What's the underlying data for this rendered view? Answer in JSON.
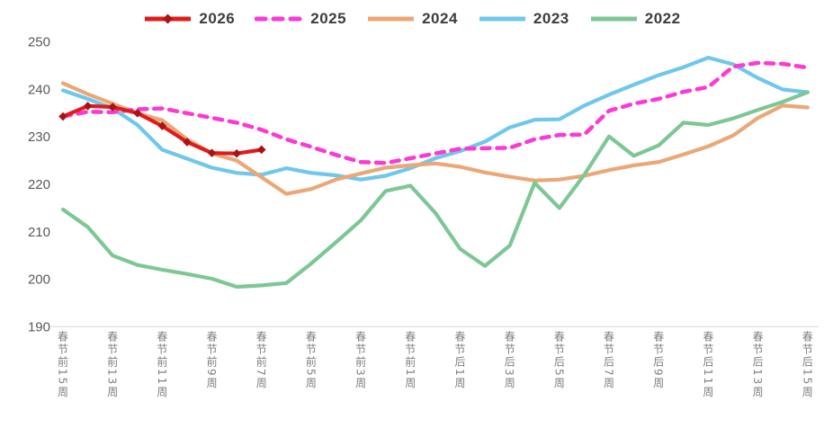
{
  "chart_data": {
    "type": "line",
    "title": "",
    "x_axis": {
      "visible_labels": [
        "春节前15周",
        "春节前13周",
        "春节前11周",
        "春节前9周",
        "春节前7周",
        "春节前5周",
        "春节前3周",
        "春节前1周",
        "春节后1周",
        "春节后3周",
        "春节后5周",
        "春节后7周",
        "春节后9周",
        "春节后11周",
        "春节后13周",
        "春节后15周"
      ],
      "label_every_n_points": 2,
      "total_points": 31
    },
    "y_axis": {
      "min": 190,
      "max": 250,
      "step": 10,
      "tick_labels": [
        "250",
        "240",
        "230",
        "220",
        "210",
        "200",
        "190"
      ]
    },
    "grid": "off",
    "legend_position": "top",
    "axis_line_color": "#d9d9d9",
    "y_label_color": "#595959",
    "x_label_color": "#7f7f7f",
    "legend_text_color": "#3d3d3d",
    "series": [
      {
        "name": "2026",
        "color": "#e11b1b",
        "marker": "diamond",
        "marker_color": "#a81414",
        "line_style": "solid",
        "values": [
          234.3,
          236.5,
          236.3,
          235.0,
          232.3,
          228.9,
          226.6,
          226.5,
          227.3
        ]
      },
      {
        "name": "2025",
        "color": "#fc39d3",
        "marker": "none",
        "line_style": "dashed",
        "values": [
          234.3,
          235.3,
          235.2,
          235.8,
          236.0,
          235.0,
          234.0,
          233.0,
          231.5,
          229.5,
          227.9,
          226.2,
          224.7,
          224.5,
          225.5,
          226.5,
          227.5,
          227.6,
          227.7,
          229.5,
          230.4,
          230.5,
          235.5,
          237.0,
          238.0,
          239.5,
          240.5,
          244.8,
          245.6,
          245.4,
          244.6
        ]
      },
      {
        "name": "2024",
        "color": "#eba776",
        "marker": "none",
        "line_style": "solid",
        "values": [
          241.3,
          239.0,
          237.0,
          235.0,
          233.5,
          229.5,
          226.5,
          225.0,
          221.5,
          218.0,
          219.0,
          221.0,
          222.3,
          223.5,
          224.0,
          224.4,
          223.7,
          222.5,
          221.6,
          220.8,
          221.0,
          221.8,
          223.0,
          224.0,
          224.7,
          226.3,
          228.0,
          230.3,
          234.0,
          236.6,
          236.2
        ]
      },
      {
        "name": "2023",
        "color": "#6fc7ec",
        "marker": "none",
        "line_style": "solid",
        "values": [
          239.8,
          238.0,
          236.0,
          232.5,
          227.3,
          225.4,
          223.5,
          222.4,
          222.0,
          223.4,
          222.4,
          221.9,
          221.0,
          221.8,
          223.4,
          225.5,
          227.0,
          229.0,
          232.0,
          233.6,
          233.7,
          236.6,
          238.9,
          241.0,
          243.0,
          244.7,
          246.7,
          245.3,
          242.4,
          240.0,
          239.4
        ]
      },
      {
        "name": "2022",
        "color": "#7dc795",
        "marker": "none",
        "line_style": "solid",
        "values": [
          214.7,
          211.0,
          205.0,
          203.0,
          202.0,
          201.1,
          200.1,
          198.4,
          198.7,
          199.2,
          203.3,
          207.8,
          212.4,
          218.6,
          219.7,
          214.0,
          206.4,
          202.8,
          207.1,
          220.3,
          215.0,
          222.0,
          230.1,
          226.0,
          228.2,
          233.0,
          232.5,
          233.9,
          235.7,
          237.4,
          239.4
        ]
      }
    ]
  }
}
